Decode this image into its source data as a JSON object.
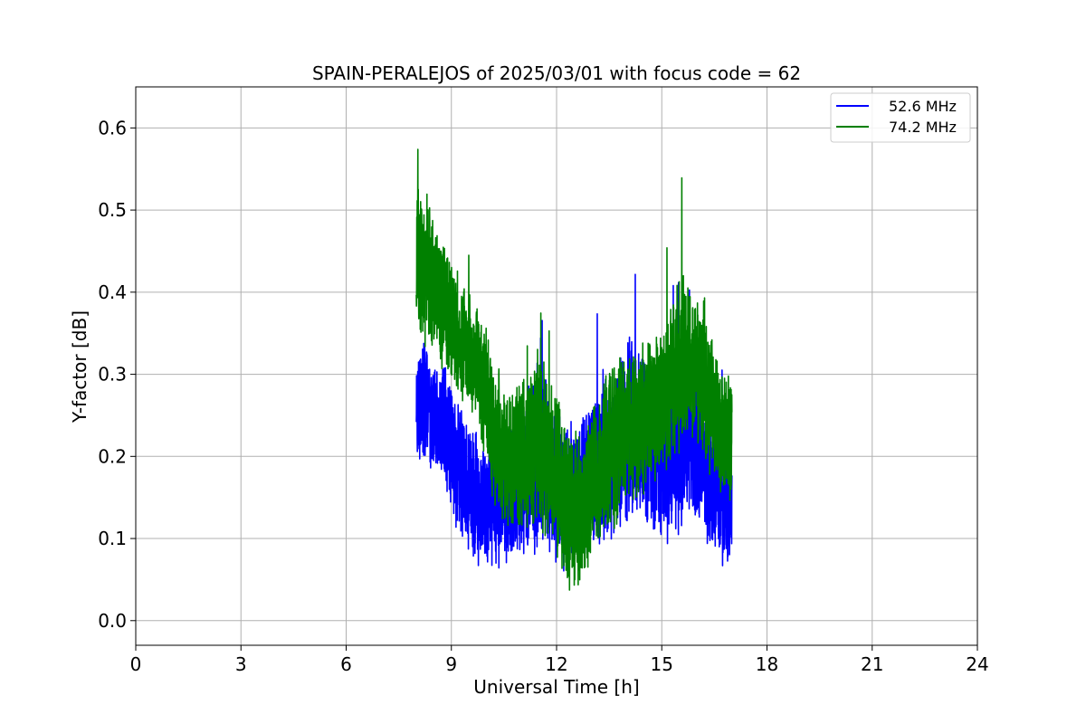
{
  "chart_data": {
    "type": "line",
    "title": "SPAIN-PERALEJOS of 2025/03/01 with focus code = 62",
    "xlabel": "Universal Time [h]",
    "ylabel": "Y-factor [dB]",
    "xlim": [
      0,
      24
    ],
    "ylim": [
      -0.03,
      0.65
    ],
    "xticks": [
      0,
      3,
      6,
      9,
      12,
      15,
      18,
      21,
      24
    ],
    "xtick_labels": [
      "0",
      "3",
      "6",
      "9",
      "12",
      "15",
      "18",
      "21",
      "24"
    ],
    "yticks": [
      0.0,
      0.1,
      0.2,
      0.3,
      0.4,
      0.5,
      0.6
    ],
    "ytick_labels": [
      "0.0",
      "0.1",
      "0.2",
      "0.3",
      "0.4",
      "0.5",
      "0.6"
    ],
    "grid": true,
    "legend_position": "top-right",
    "series": [
      {
        "name": "52.6 MHz",
        "color": "#0000ff",
        "x": [
          8.0,
          8.25,
          8.5,
          8.75,
          9.0,
          9.25,
          9.5,
          9.75,
          10.0,
          10.25,
          10.5,
          10.75,
          11.0,
          11.25,
          11.5,
          11.75,
          12.0,
          12.25,
          12.5,
          12.75,
          13.0,
          13.25,
          13.5,
          13.75,
          14.0,
          14.25,
          14.5,
          14.75,
          15.0,
          15.25,
          15.5,
          15.75,
          16.0,
          16.25,
          16.5,
          16.75,
          17.0
        ],
        "y": [
          0.28,
          0.26,
          0.25,
          0.24,
          0.21,
          0.18,
          0.17,
          0.15,
          0.14,
          0.14,
          0.15,
          0.16,
          0.17,
          0.19,
          0.2,
          0.19,
          0.16,
          0.15,
          0.16,
          0.17,
          0.18,
          0.19,
          0.2,
          0.21,
          0.22,
          0.23,
          0.22,
          0.2,
          0.19,
          0.2,
          0.22,
          0.23,
          0.21,
          0.18,
          0.16,
          0.15,
          0.15
        ],
        "spread": [
          0.08,
          0.08,
          0.08,
          0.08,
          0.09,
          0.09,
          0.09,
          0.09,
          0.08,
          0.08,
          0.09,
          0.1,
          0.1,
          0.11,
          0.12,
          0.11,
          0.1,
          0.1,
          0.1,
          0.1,
          0.1,
          0.11,
          0.11,
          0.11,
          0.12,
          0.12,
          0.11,
          0.1,
          0.1,
          0.11,
          0.12,
          0.11,
          0.1,
          0.09,
          0.09,
          0.09,
          0.09
        ]
      },
      {
        "name": "74.2 MHz",
        "color": "#008000",
        "x": [
          8.0,
          8.25,
          8.5,
          8.75,
          9.0,
          9.25,
          9.5,
          9.75,
          10.0,
          10.25,
          10.5,
          10.75,
          11.0,
          11.25,
          11.5,
          11.75,
          12.0,
          12.25,
          12.5,
          12.75,
          13.0,
          13.25,
          13.5,
          13.75,
          14.0,
          14.25,
          14.5,
          14.75,
          15.0,
          15.25,
          15.5,
          15.75,
          16.0,
          16.25,
          16.5,
          16.75,
          17.0
        ],
        "y": [
          0.44,
          0.43,
          0.41,
          0.39,
          0.37,
          0.35,
          0.33,
          0.31,
          0.27,
          0.22,
          0.2,
          0.2,
          0.2,
          0.21,
          0.22,
          0.21,
          0.18,
          0.14,
          0.13,
          0.14,
          0.17,
          0.19,
          0.21,
          0.22,
          0.23,
          0.24,
          0.25,
          0.26,
          0.27,
          0.29,
          0.31,
          0.32,
          0.3,
          0.27,
          0.25,
          0.23,
          0.22
        ],
        "spread": [
          0.1,
          0.1,
          0.09,
          0.09,
          0.09,
          0.08,
          0.08,
          0.08,
          0.09,
          0.1,
          0.1,
          0.1,
          0.1,
          0.11,
          0.12,
          0.11,
          0.11,
          0.1,
          0.1,
          0.1,
          0.1,
          0.1,
          0.11,
          0.11,
          0.1,
          0.1,
          0.1,
          0.1,
          0.1,
          0.11,
          0.12,
          0.11,
          0.1,
          0.09,
          0.09,
          0.08,
          0.08
        ]
      }
    ]
  }
}
